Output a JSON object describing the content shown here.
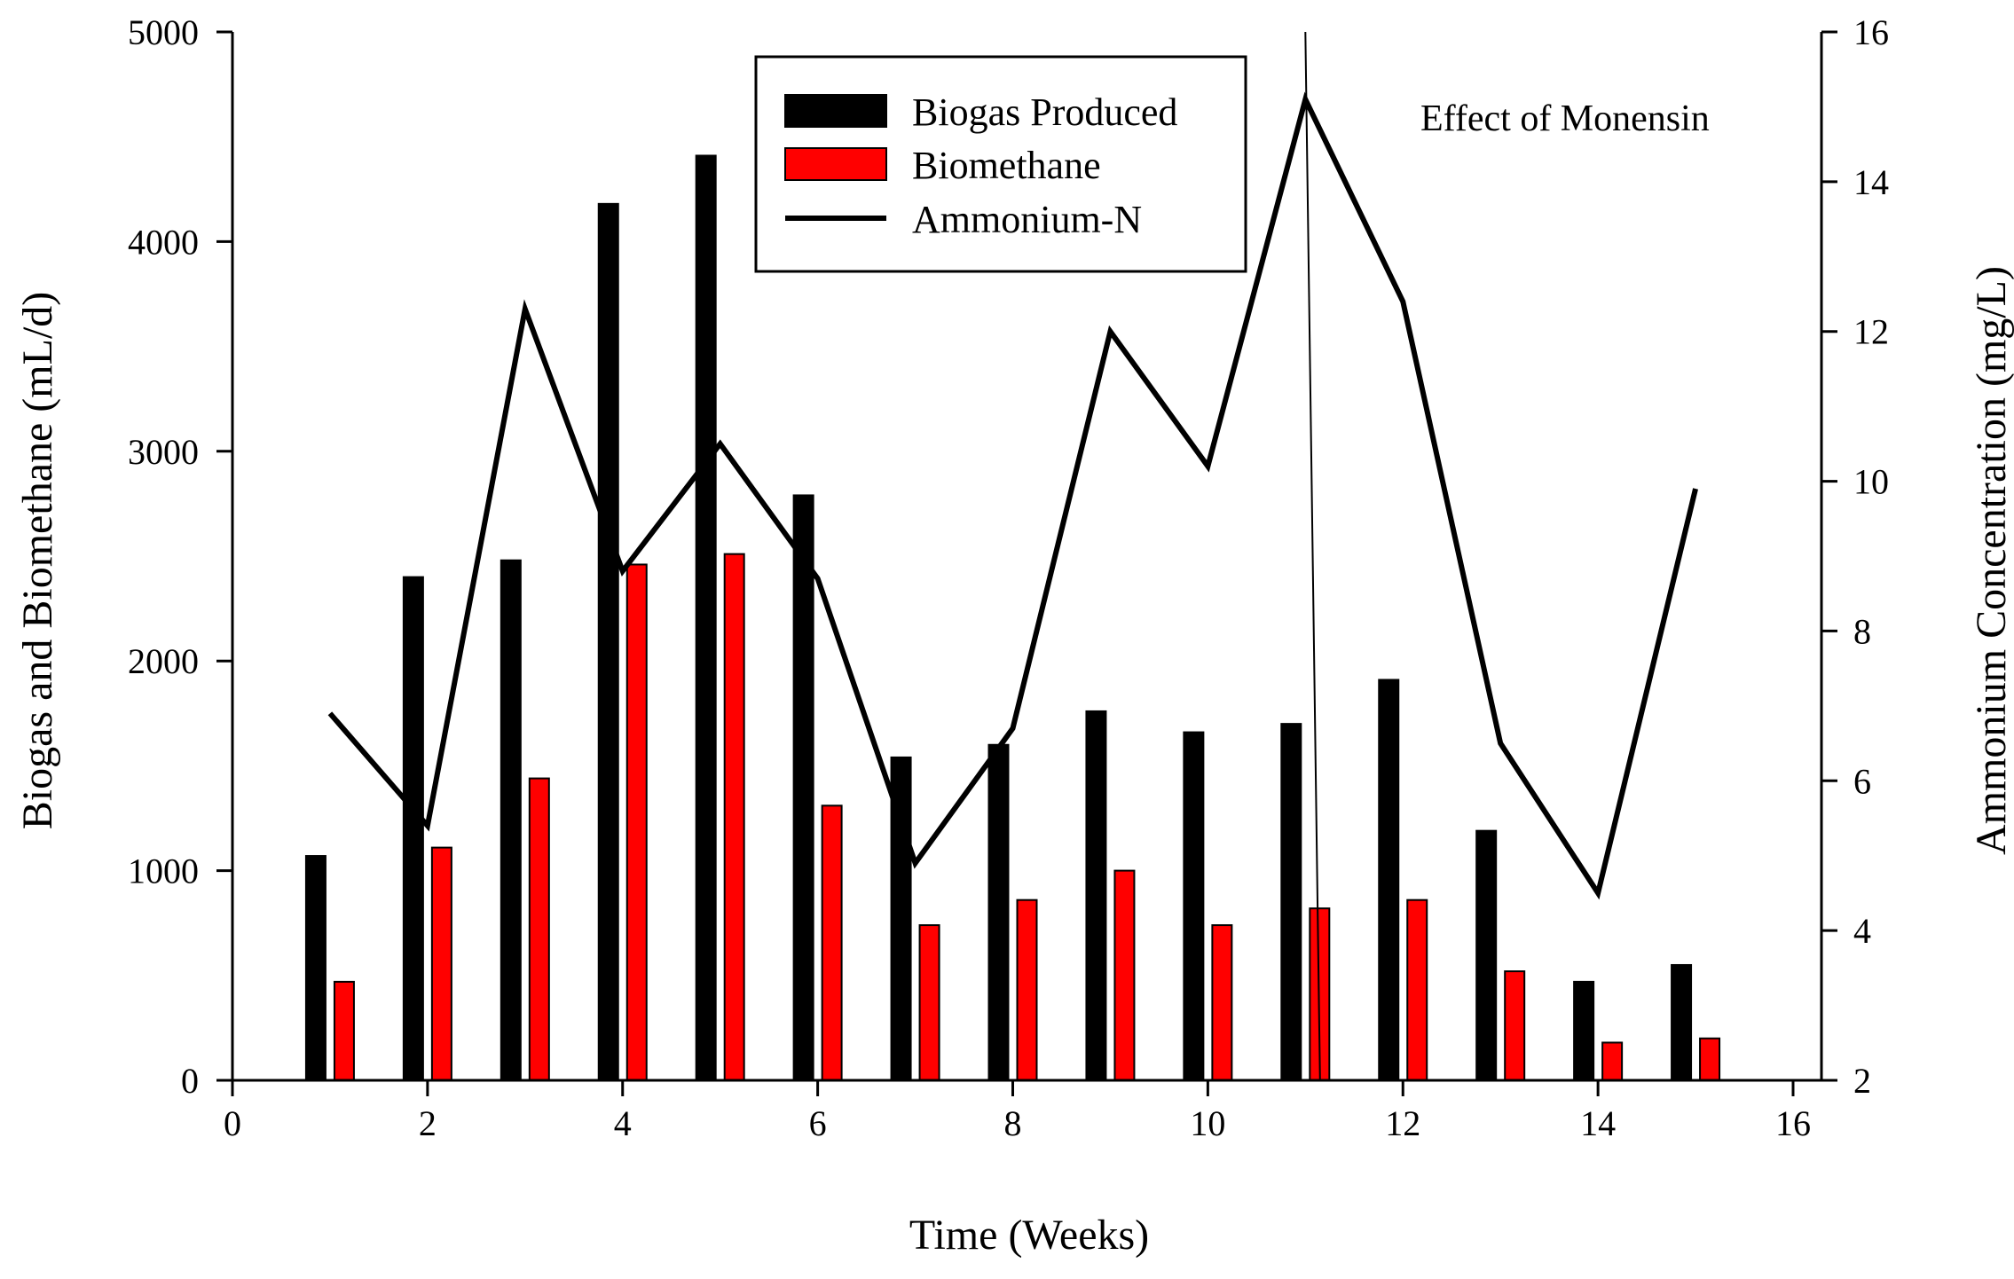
{
  "chart_data": {
    "type": "bar",
    "title": "",
    "xlabel": "Time (Weeks)",
    "ylabel": "Biogas and Biomethane (mL/d)",
    "y2label": "Ammonium Concentration (mg/L)",
    "xlim": [
      0,
      16
    ],
    "ylim": [
      0,
      5000
    ],
    "y2lim": [
      2,
      16
    ],
    "x_ticks": [
      0,
      2,
      4,
      6,
      8,
      10,
      12,
      14,
      16
    ],
    "y_ticks": [
      0,
      1000,
      2000,
      3000,
      4000,
      5000
    ],
    "y2_ticks": [
      2,
      4,
      6,
      8,
      10,
      12,
      14,
      16
    ],
    "grid": false,
    "legend_position": "top-center",
    "annotation": "Effect of Monensin",
    "monensin_line": {
      "x_top": 11.0,
      "x_bottom": 11.15
    },
    "series": [
      {
        "name": "Biogas Produced",
        "kind": "bar",
        "axis": "left",
        "color": "#000000",
        "x": [
          1,
          2,
          3,
          4,
          5,
          6,
          7,
          8,
          9,
          10,
          11,
          12,
          13,
          14,
          15
        ],
        "values": [
          1070,
          2400,
          2480,
          4180,
          4410,
          2790,
          1540,
          1600,
          1760,
          1660,
          1700,
          1910,
          1190,
          470,
          550
        ]
      },
      {
        "name": "Biomethane",
        "kind": "bar",
        "axis": "left",
        "color": "#ff0000",
        "x": [
          1,
          2,
          3,
          4,
          5,
          6,
          7,
          8,
          9,
          10,
          11,
          12,
          13,
          14,
          15
        ],
        "values": [
          470,
          1110,
          1440,
          2460,
          2510,
          1310,
          740,
          860,
          1000,
          740,
          820,
          860,
          520,
          180,
          200
        ]
      },
      {
        "name": "Ammonium-N",
        "kind": "line",
        "axis": "right",
        "color": "#000000",
        "x": [
          1,
          2,
          3,
          4,
          5,
          6,
          7,
          8,
          9,
          10,
          11,
          12,
          13,
          14,
          15
        ],
        "values": [
          6.9,
          5.4,
          12.3,
          8.8,
          10.5,
          8.7,
          4.9,
          6.7,
          12.0,
          10.2,
          15.1,
          12.4,
          6.5,
          4.5,
          9.9
        ]
      }
    ]
  }
}
